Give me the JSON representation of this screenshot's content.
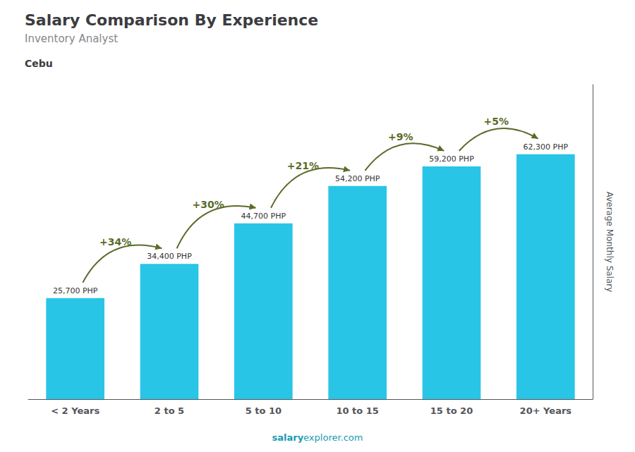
{
  "chart_data": {
    "type": "bar",
    "title": "Salary Comparison By Experience",
    "subtitle": "Inventory Analyst",
    "city": "Cebu",
    "ylabel": "Average Monthly Salary",
    "categories": [
      "< 2 Years",
      "2 to 5",
      "5 to 10",
      "10 to 15",
      "15 to 20",
      "20+ Years"
    ],
    "values": [
      25700,
      34400,
      44700,
      54200,
      59200,
      62300
    ],
    "value_labels": [
      "25,700 PHP",
      "34,400 PHP",
      "44,700 PHP",
      "54,200 PHP",
      "59,200 PHP",
      "62,300 PHP"
    ],
    "data_labels": true,
    "color": "#29c5e6",
    "ylim": [
      0,
      80000
    ],
    "tick_labels": "x",
    "grid": false,
    "annotations": [
      {
        "text": "+34%",
        "from": "< 2 Years",
        "to": "2 to 5"
      },
      {
        "text": "+30%",
        "from": "2 to 5",
        "to": "5 to 10"
      },
      {
        "text": "+21%",
        "from": "5 to 10",
        "to": "10 to 15"
      },
      {
        "text": "+9%",
        "from": "10 to 15",
        "to": "15 to 20"
      },
      {
        "text": "+5%",
        "from": "15 to 20",
        "to": "20+ Years"
      }
    ],
    "footer": [
      "salary",
      "explorer.com"
    ]
  }
}
